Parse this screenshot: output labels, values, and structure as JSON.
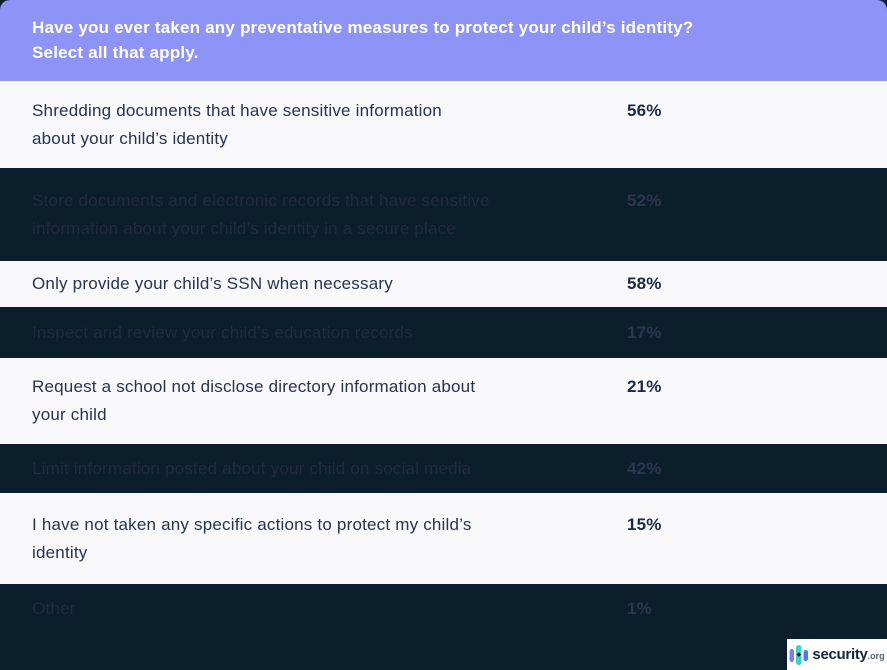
{
  "header": {
    "question": "Have you ever taken any preventative measures to protect your child’s identity?\nSelect all that apply.",
    "bg_color": "#8e93f8",
    "text_color": "#ffffff"
  },
  "chart_data": {
    "type": "table",
    "title": "Have you ever taken any preventative measures to protect your child’s identity? Select all that apply.",
    "columns": [
      "measure",
      "percent"
    ],
    "legend_position": "none",
    "grid": false,
    "rows": [
      {
        "label": "Shredding documents that have sensitive information\nabout your child’s identity",
        "value": "56%",
        "value_num": 56,
        "theme": "light"
      },
      {
        "label": "Store documents and electronic records that have sensitive\ninformation about your child’s identity in a secure place",
        "value": "52%",
        "value_num": 52,
        "theme": "dark"
      },
      {
        "label": "Only provide your child’s SSN when necessary",
        "value": "58%",
        "value_num": 58,
        "theme": "light"
      },
      {
        "label": "Inspect and review your child’s education records",
        "value": "17%",
        "value_num": 17,
        "theme": "dark"
      },
      {
        "label": "Request a school not disclose directory information about\nyour child",
        "value": "21%",
        "value_num": 21,
        "theme": "light"
      },
      {
        "label": "Limit information posted about your child on social media",
        "value": "42%",
        "value_num": 42,
        "theme": "dark"
      },
      {
        "label": "I have not taken any specific actions to protect my child’s\nidentity",
        "value": "15%",
        "value_num": 15,
        "theme": "light"
      },
      {
        "label": "Other",
        "value": "1%",
        "value_num": 1,
        "theme": "dark"
      }
    ]
  },
  "colors": {
    "page_bg": "#0a1e2b",
    "dark_row_bg": "#0a1e2b",
    "light_row_bg": "#f8f8fa",
    "light_row_text": "#26344e",
    "dark_row_text": "#212a3f",
    "header_purple": "#8e93f8",
    "logo_purple_bar": "#7a7ff0",
    "logo_teal_bar": "#3ed0c4",
    "logo_blue_bar": "#4a7fdf"
  },
  "footer": {
    "logo_brand": "security",
    "logo_tld": ".org"
  }
}
